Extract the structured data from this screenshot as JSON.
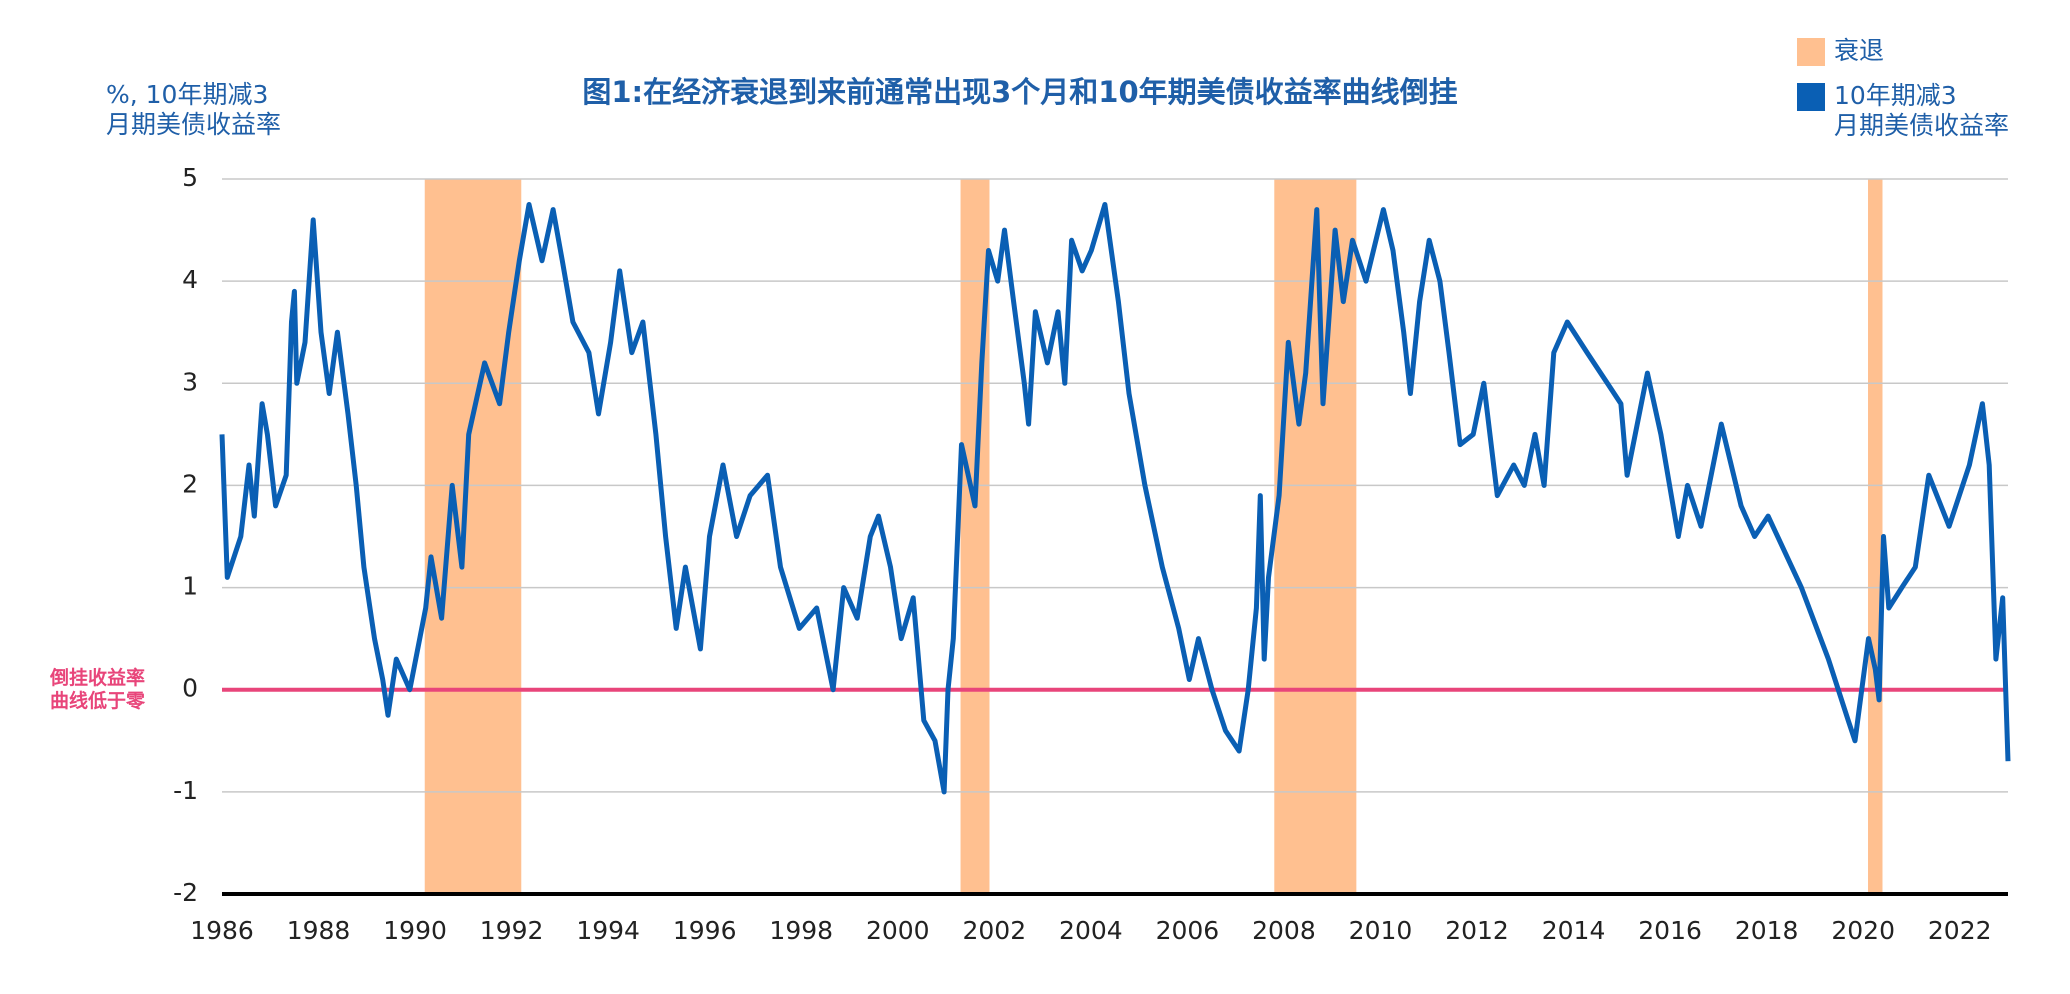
{
  "chart_data": {
    "type": "line",
    "title": "图1:在经济衰退到来前通常出现3个月和10年期美债收益率曲线倒挂",
    "ylabel": "%, 10年期减3\n月期美债收益率",
    "annotation": "倒挂收益率\n曲线低于零",
    "xlim": [
      1986,
      2023
    ],
    "xticks": [
      1986,
      1988,
      1990,
      1992,
      1994,
      1996,
      1998,
      2000,
      2002,
      2004,
      2006,
      2008,
      2010,
      2012,
      2014,
      2016,
      2018,
      2020,
      2022
    ],
    "ylim": [
      -2,
      5
    ],
    "yticks": [
      -2,
      -1,
      0,
      1,
      2,
      3,
      4,
      5
    ],
    "grid": true,
    "reference_line": {
      "value": 0,
      "color": "#e8457a"
    },
    "recessions": {
      "name": "衰退",
      "color": "#ffc090",
      "spans": [
        [
          1990.2,
          1992.2
        ],
        [
          2001.3,
          2001.9
        ],
        [
          2007.8,
          2009.5
        ],
        [
          2020.1,
          2020.4
        ]
      ]
    },
    "series": [
      {
        "name": "10年期减3\n月期美债收益率",
        "color": "#0a5fb4",
        "x": [
          1986.0,
          1986.11,
          1986.39,
          1986.56,
          1986.67,
          1986.83,
          1986.94,
          1987.11,
          1987.33,
          1987.44,
          1987.5,
          1987.55,
          1987.72,
          1987.89,
          1988.05,
          1988.22,
          1988.39,
          1988.61,
          1988.78,
          1988.94,
          1989.16,
          1989.33,
          1989.44,
          1989.61,
          1989.89,
          1990.22,
          1990.33,
          1990.55,
          1990.77,
          1990.97,
          1991.11,
          1991.44,
          1991.75,
          1991.94,
          1992.16,
          1992.36,
          1992.63,
          1992.86,
          1993.05,
          1993.27,
          1993.6,
          1993.8,
          1994.05,
          1994.24,
          1994.49,
          1994.72,
          1994.99,
          1995.19,
          1995.41,
          1995.6,
          1995.91,
          1996.1,
          1996.38,
          1996.66,
          1996.94,
          1997.3,
          1997.57,
          1997.96,
          1998.32,
          1998.66,
          1998.88,
          1999.16,
          1999.43,
          1999.6,
          1999.85,
          2000.07,
          2000.32,
          2000.54,
          2000.77,
          2000.96,
          2001.04,
          2001.15,
          2001.32,
          2001.6,
          2001.74,
          2001.88,
          2002.07,
          2002.21,
          2002.4,
          2002.62,
          2002.71,
          2002.85,
          2003.1,
          2003.32,
          2003.46,
          2003.6,
          2003.82,
          2004.01,
          2004.29,
          2004.57,
          2004.79,
          2005.12,
          2005.48,
          2005.82,
          2006.04,
          2006.23,
          2006.51,
          2006.79,
          2007.07,
          2007.26,
          2007.43,
          2007.51,
          2007.59,
          2007.68,
          2007.9,
          2008.09,
          2008.31,
          2008.45,
          2008.68,
          2008.81,
          2009.06,
          2009.23,
          2009.42,
          2009.7,
          2010.06,
          2010.26,
          2010.48,
          2010.62,
          2010.81,
          2011.01,
          2011.23,
          2011.42,
          2011.65,
          2011.92,
          2012.14,
          2012.42,
          2012.76,
          2012.98,
          2013.2,
          2013.39,
          2013.59,
          2013.87,
          2014.28,
          2014.7,
          2014.98,
          2015.11,
          2015.53,
          2015.81,
          2016.17,
          2016.36,
          2016.64,
          2017.06,
          2017.47,
          2017.75,
          2018.03,
          2018.72,
          2019.28,
          2019.69,
          2019.83,
          2020.11,
          2020.25,
          2020.33,
          2020.42,
          2020.53,
          2020.8,
          2021.08,
          2021.36,
          2021.78,
          2022.2,
          2022.47,
          2022.61,
          2022.75,
          2022.89,
          2023.0
        ],
        "values": [
          2.5,
          1.1,
          1.5,
          2.2,
          1.7,
          2.8,
          2.5,
          1.8,
          2.1,
          3.6,
          3.9,
          3.0,
          3.4,
          4.6,
          3.5,
          2.9,
          3.5,
          2.7,
          2.0,
          1.2,
          0.5,
          0.1,
          -0.25,
          0.3,
          0.0,
          0.8,
          1.3,
          0.7,
          2.0,
          1.2,
          2.5,
          3.2,
          2.8,
          3.5,
          4.2,
          4.75,
          4.2,
          4.7,
          4.2,
          3.6,
          3.3,
          2.7,
          3.4,
          4.1,
          3.3,
          3.6,
          2.5,
          1.5,
          0.6,
          1.2,
          0.4,
          1.5,
          2.2,
          1.5,
          1.9,
          2.1,
          1.2,
          0.6,
          0.8,
          0.0,
          1.0,
          0.7,
          1.5,
          1.7,
          1.2,
          0.5,
          0.9,
          -0.3,
          -0.5,
          -1.0,
          0.0,
          0.5,
          2.4,
          1.8,
          3.2,
          4.3,
          4.0,
          4.5,
          3.8,
          3.0,
          2.6,
          3.7,
          3.2,
          3.7,
          3.0,
          4.4,
          4.1,
          4.3,
          4.75,
          3.8,
          2.9,
          2.0,
          1.2,
          0.6,
          0.1,
          0.5,
          0.0,
          -0.4,
          -0.6,
          0.0,
          0.8,
          1.9,
          0.3,
          1.1,
          1.9,
          3.4,
          2.6,
          3.1,
          4.7,
          2.8,
          4.5,
          3.8,
          4.4,
          4.0,
          4.7,
          4.3,
          3.5,
          2.9,
          3.8,
          4.4,
          4.0,
          3.3,
          2.4,
          2.5,
          3.0,
          1.9,
          2.2,
          2.0,
          2.5,
          2.0,
          3.3,
          3.6,
          3.3,
          3.0,
          2.8,
          2.1,
          3.1,
          2.5,
          1.5,
          2.0,
          1.6,
          2.6,
          1.8,
          1.5,
          1.7,
          1.0,
          0.3,
          -0.3,
          -0.5,
          0.5,
          0.2,
          -0.1,
          1.5,
          0.8,
          1.0,
          1.2,
          2.1,
          1.6,
          2.2,
          2.8,
          2.2,
          0.3,
          0.9,
          -0.7
        ]
      }
    ]
  }
}
